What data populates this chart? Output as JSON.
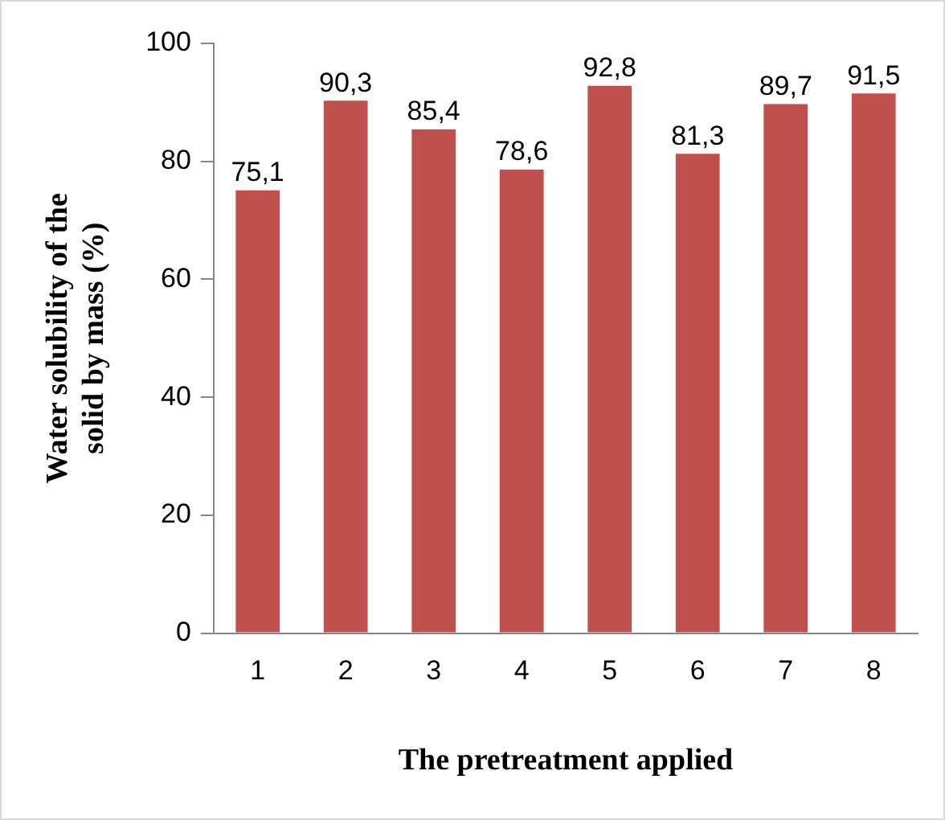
{
  "chart_data": {
    "type": "bar",
    "xlabel": "The pretreatment applied",
    "ylabel": "Water solubility of the solid by mass (%)",
    "categories": [
      "1",
      "2",
      "3",
      "4",
      "5",
      "6",
      "7",
      "8"
    ],
    "values": [
      75.1,
      90.3,
      85.4,
      78.6,
      92.8,
      81.3,
      89.7,
      91.5
    ],
    "value_labels": [
      "75,1",
      "90,3",
      "85,4",
      "78,6",
      "92,8",
      "81,3",
      "89,7",
      "91,5"
    ],
    "color": "#c0504d",
    "ylim": [
      0,
      100
    ],
    "yticks": [
      0,
      20,
      40,
      60,
      80,
      100
    ],
    "grid": false,
    "legend": false
  }
}
